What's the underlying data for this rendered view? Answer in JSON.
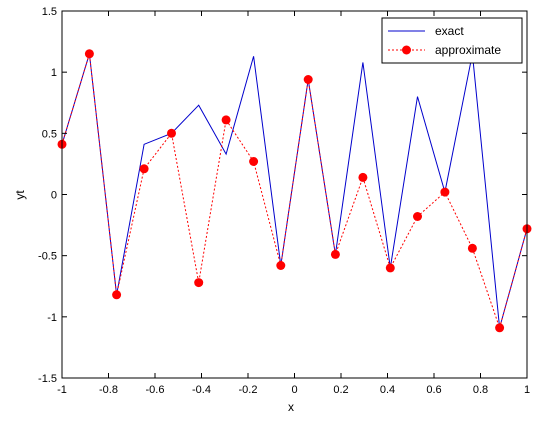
{
  "chart_data": {
    "type": "line",
    "title": "",
    "xlabel": "x",
    "ylabel": "yt",
    "xlim": [
      -1,
      1
    ],
    "ylim": [
      -1.5,
      1.5
    ],
    "xticks": [
      -1,
      -0.8,
      -0.6,
      -0.4,
      -0.2,
      0,
      0.2,
      0.4,
      0.6,
      0.8,
      1
    ],
    "yticks": [
      -1.5,
      -1,
      -0.5,
      0,
      0.5,
      1,
      1.5
    ],
    "xtick_labels": [
      "-1",
      "-0.8",
      "-0.6",
      "-0.4",
      "-0.2",
      "0",
      "0.2",
      "0.4",
      "0.6",
      "0.8",
      "1"
    ],
    "ytick_labels": [
      "-1.5",
      "-1",
      "-0.5",
      "0",
      "0.5",
      "1",
      "1.5"
    ],
    "grid": false,
    "legend_position": "top-right",
    "series": [
      {
        "name": "exact",
        "color": "#0000cc",
        "style": "solid",
        "marker": "none",
        "x": [
          -1,
          -0.882,
          -0.765,
          -0.647,
          -0.529,
          -0.412,
          -0.294,
          -0.176,
          -0.059,
          0.059,
          0.176,
          0.294,
          0.412,
          0.529,
          0.647,
          0.765,
          0.882,
          1
        ],
        "y": [
          0.41,
          1.15,
          -0.82,
          0.41,
          0.5,
          0.73,
          0.33,
          1.13,
          -0.58,
          0.94,
          -0.49,
          1.08,
          -0.6,
          0.8,
          0.02,
          1.15,
          -1.09,
          -0.28
        ]
      },
      {
        "name": "approximate",
        "color": "#ff0000",
        "style": "dashed",
        "marker": "circle",
        "x": [
          -1,
          -0.882,
          -0.765,
          -0.647,
          -0.529,
          -0.412,
          -0.294,
          -0.176,
          -0.059,
          0.059,
          0.176,
          0.294,
          0.412,
          0.529,
          0.647,
          0.765,
          0.882,
          1
        ],
        "y": [
          0.41,
          1.15,
          -0.82,
          0.21,
          0.5,
          -0.72,
          0.61,
          0.27,
          -0.58,
          0.94,
          -0.49,
          0.14,
          -0.6,
          -0.18,
          0.02,
          -0.44,
          -1.09,
          -0.28
        ]
      }
    ]
  }
}
